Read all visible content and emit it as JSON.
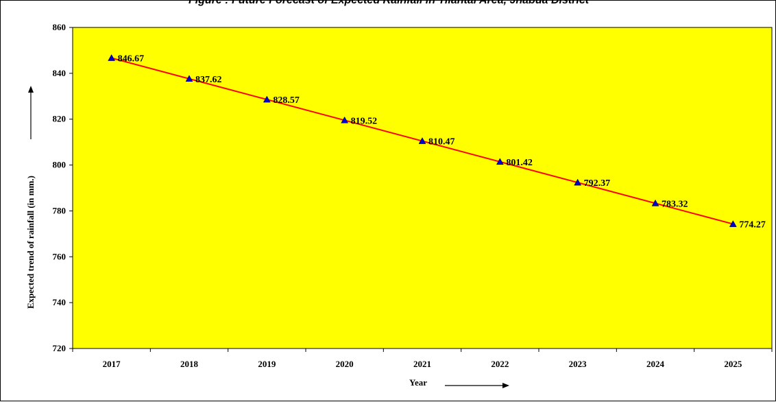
{
  "chart_data": {
    "type": "line",
    "title": "Figure : Future Forecast of Expected Rainfall in Tilantal Area, Jhabua District",
    "xlabel": "Year",
    "ylabel": "Expected trend of rainfall (in mm.)",
    "categories": [
      "2017",
      "2018",
      "2019",
      "2020",
      "2021",
      "2022",
      "2023",
      "2024",
      "2025"
    ],
    "series": [
      {
        "values": [
          846.67,
          837.62,
          828.57,
          819.52,
          810.47,
          801.42,
          792.37,
          783.32,
          774.27
        ],
        "labels": [
          "846.67",
          "837.62",
          "828.57",
          "819.52",
          "810.47",
          "801.42",
          "792.37",
          "783.32",
          "774.27"
        ]
      }
    ],
    "ylim": [
      720,
      860
    ],
    "yticks": [
      "720",
      "740",
      "760",
      "780",
      "800",
      "820",
      "840",
      "860"
    ],
    "grid": false,
    "legend": "none",
    "colors": {
      "plot_background": "#FFFF00",
      "line": "#FF0000",
      "marker": "#0000CC"
    }
  }
}
